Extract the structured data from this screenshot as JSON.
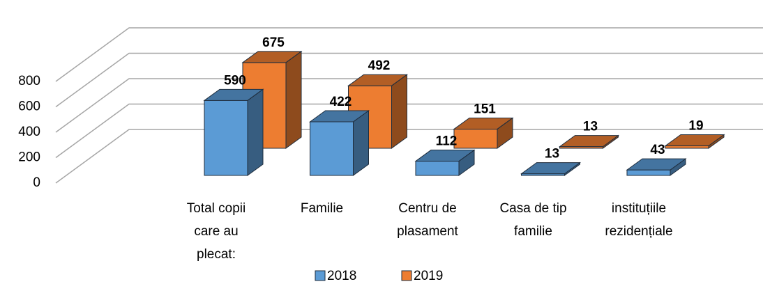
{
  "chart_data": {
    "type": "bar3d",
    "categories": [
      "Total copii care au plecat:",
      "Familie",
      "Centru de plasament",
      "Casa de tip familie",
      "instituțiile rezidențiale"
    ],
    "series": [
      {
        "name": "2018",
        "color": "#5b9bd5",
        "values": [
          590,
          422,
          112,
          13,
          43
        ]
      },
      {
        "name": "2019",
        "color": "#ed7d31",
        "values": [
          675,
          492,
          151,
          13,
          19
        ]
      }
    ],
    "ylim": [
      0,
      800
    ],
    "yticks": [
      0,
      200,
      400,
      600,
      800
    ],
    "grid": true,
    "legend": "bottom"
  }
}
